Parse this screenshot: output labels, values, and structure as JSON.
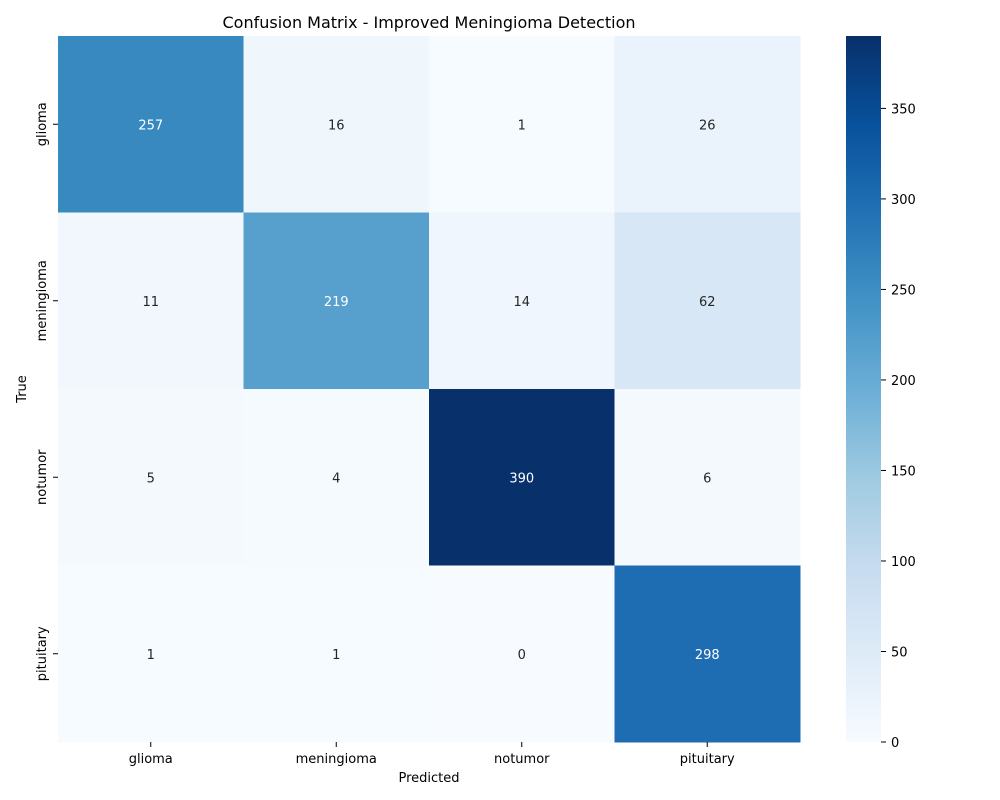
{
  "chart_data": {
    "type": "heatmap",
    "title": "Confusion Matrix - Improved Meningioma Detection",
    "xlabel": "Predicted",
    "ylabel": "True",
    "x_categories": [
      "glioma",
      "meningioma",
      "notumor",
      "pituitary"
    ],
    "y_categories": [
      "glioma",
      "meningioma",
      "notumor",
      "pituitary"
    ],
    "values": [
      [
        257,
        16,
        1,
        26
      ],
      [
        11,
        219,
        14,
        62
      ],
      [
        5,
        4,
        390,
        6
      ],
      [
        1,
        1,
        0,
        298
      ]
    ],
    "colormap": "Blues",
    "colorbar": {
      "min": 0,
      "max": 390,
      "ticks": [
        0,
        50,
        100,
        150,
        200,
        250,
        300,
        350
      ]
    },
    "grid": false,
    "annotations": true
  }
}
